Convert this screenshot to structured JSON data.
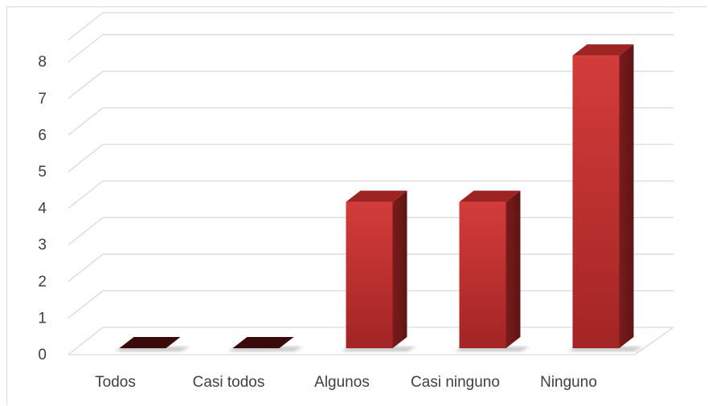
{
  "chart_data": {
    "type": "bar",
    "categories": [
      "Todos",
      "Casi todos",
      "Algunos",
      "Casi ninguno",
      "Ninguno"
    ],
    "values": [
      0,
      0,
      4,
      4,
      8
    ],
    "yticks": [
      0,
      1,
      2,
      3,
      4,
      5,
      6,
      7,
      8
    ],
    "ylim": [
      0,
      8.6
    ],
    "grid": true,
    "style": "3d-column",
    "colors": {
      "bar_front": "#c83232",
      "bar_side": "#7a1c1c",
      "bar_top": "#9e2424",
      "grid": "#d9d9d9"
    }
  }
}
